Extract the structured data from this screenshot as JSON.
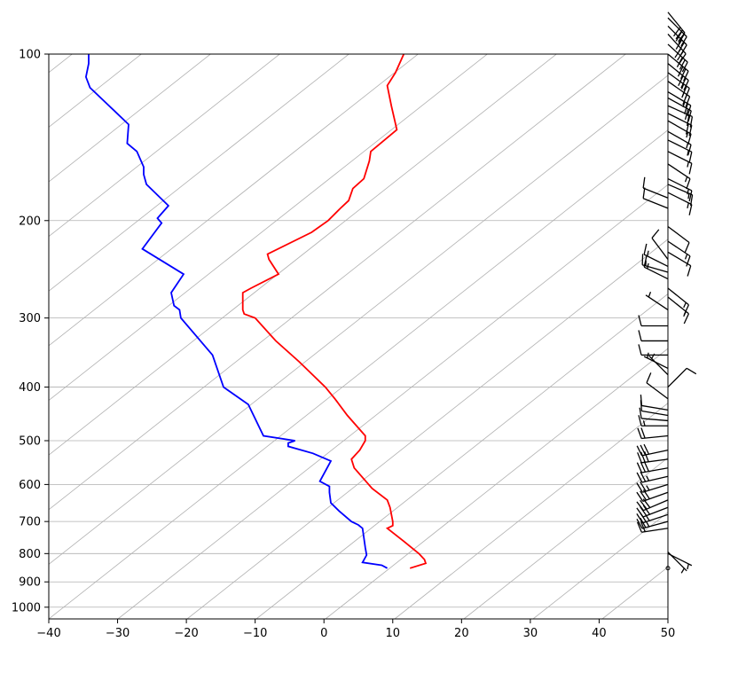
{
  "chart_data": {
    "type": "line",
    "title": "",
    "xlabel": "",
    "ylabel": "",
    "xlim": [
      -40,
      50
    ],
    "ylim_pressure": [
      1050,
      100
    ],
    "y_scale": "log",
    "grid": true,
    "x_ticks": [
      {
        "value": -40,
        "label": "−40"
      },
      {
        "value": -30,
        "label": "−30"
      },
      {
        "value": -20,
        "label": "−20"
      },
      {
        "value": -10,
        "label": "−10"
      },
      {
        "value": 0,
        "label": "0"
      },
      {
        "value": 10,
        "label": "10"
      },
      {
        "value": 20,
        "label": "20"
      },
      {
        "value": 30,
        "label": "30"
      },
      {
        "value": 40,
        "label": "40"
      },
      {
        "value": 50,
        "label": "50"
      }
    ],
    "y_ticks": [
      {
        "value": 100,
        "label": "100"
      },
      {
        "value": 200,
        "label": "200"
      },
      {
        "value": 300,
        "label": "300"
      },
      {
        "value": 400,
        "label": "400"
      },
      {
        "value": 500,
        "label": "500"
      },
      {
        "value": 600,
        "label": "600"
      },
      {
        "value": 700,
        "label": "700"
      },
      {
        "value": 800,
        "label": "800"
      },
      {
        "value": 900,
        "label": "900"
      },
      {
        "value": 1000,
        "label": "1000"
      }
    ],
    "series": [
      {
        "color": "#ff0000",
        "points": [
          {
            "p": 850,
            "x": 12.5
          },
          {
            "p": 833,
            "x": 14.8
          },
          {
            "p": 820,
            "x": 14.6
          },
          {
            "p": 800,
            "x": 13.8
          },
          {
            "p": 760,
            "x": 11.6
          },
          {
            "p": 720,
            "x": 9.2
          },
          {
            "p": 712,
            "x": 10.0
          },
          {
            "p": 700,
            "x": 10.0
          },
          {
            "p": 660,
            "x": 9.6
          },
          {
            "p": 640,
            "x": 9.2
          },
          {
            "p": 610,
            "x": 7.0
          },
          {
            "p": 560,
            "x": 4.4
          },
          {
            "p": 540,
            "x": 4.0
          },
          {
            "p": 520,
            "x": 5.2
          },
          {
            "p": 500,
            "x": 6.0
          },
          {
            "p": 490,
            "x": 6.0
          },
          {
            "p": 450,
            "x": 3.4
          },
          {
            "p": 420,
            "x": 1.6
          },
          {
            "p": 400,
            "x": 0.2
          },
          {
            "p": 360,
            "x": -3.6
          },
          {
            "p": 330,
            "x": -7.0
          },
          {
            "p": 300,
            "x": -10.0
          },
          {
            "p": 295,
            "x": -11.6
          },
          {
            "p": 290,
            "x": -11.8
          },
          {
            "p": 275,
            "x": -11.8
          },
          {
            "p": 270,
            "x": -11.8
          },
          {
            "p": 265,
            "x": -10.6
          },
          {
            "p": 250,
            "x": -6.6
          },
          {
            "p": 235,
            "x": -8.0
          },
          {
            "p": 230,
            "x": -8.2
          },
          {
            "p": 210,
            "x": -1.8
          },
          {
            "p": 200,
            "x": 0.6
          },
          {
            "p": 190,
            "x": 2.4
          },
          {
            "p": 184,
            "x": 3.6
          },
          {
            "p": 175,
            "x": 4.2
          },
          {
            "p": 168,
            "x": 5.8
          },
          {
            "p": 156,
            "x": 6.6
          },
          {
            "p": 150,
            "x": 6.8
          },
          {
            "p": 137,
            "x": 10.6
          },
          {
            "p": 124,
            "x": 9.8
          },
          {
            "p": 114,
            "x": 9.2
          },
          {
            "p": 108,
            "x": 10.4
          },
          {
            "p": 100,
            "x": 11.6
          }
        ]
      },
      {
        "color": "#0000ff",
        "points": [
          {
            "p": 850,
            "x": 9.2
          },
          {
            "p": 840,
            "x": 8.4
          },
          {
            "p": 830,
            "x": 5.6
          },
          {
            "p": 805,
            "x": 6.2
          },
          {
            "p": 780,
            "x": 6.0
          },
          {
            "p": 720,
            "x": 5.6
          },
          {
            "p": 710,
            "x": 5.0
          },
          {
            "p": 700,
            "x": 4.0
          },
          {
            "p": 670,
            "x": 2.2
          },
          {
            "p": 648,
            "x": 1.0
          },
          {
            "p": 620,
            "x": 0.8
          },
          {
            "p": 605,
            "x": 0.8
          },
          {
            "p": 592,
            "x": -0.6
          },
          {
            "p": 544,
            "x": 1.0
          },
          {
            "p": 527,
            "x": -1.6
          },
          {
            "p": 512,
            "x": -5.2
          },
          {
            "p": 505,
            "x": -5.2
          },
          {
            "p": 500,
            "x": -4.2
          },
          {
            "p": 490,
            "x": -8.8
          },
          {
            "p": 430,
            "x": -11.0
          },
          {
            "p": 400,
            "x": -14.6
          },
          {
            "p": 350,
            "x": -16.2
          },
          {
            "p": 300,
            "x": -20.8
          },
          {
            "p": 290,
            "x": -21.0
          },
          {
            "p": 285,
            "x": -21.8
          },
          {
            "p": 270,
            "x": -22.2
          },
          {
            "p": 250,
            "x": -20.4
          },
          {
            "p": 225,
            "x": -26.4
          },
          {
            "p": 202,
            "x": -23.6
          },
          {
            "p": 198,
            "x": -24.2
          },
          {
            "p": 188,
            "x": -22.6
          },
          {
            "p": 172,
            "x": -25.8
          },
          {
            "p": 165,
            "x": -26.2
          },
          {
            "p": 160,
            "x": -26.2
          },
          {
            "p": 150,
            "x": -27.2
          },
          {
            "p": 145,
            "x": -28.6
          },
          {
            "p": 134,
            "x": -28.4
          },
          {
            "p": 115,
            "x": -34.0
          },
          {
            "p": 110,
            "x": -34.6
          },
          {
            "p": 104,
            "x": -34.2
          },
          {
            "p": 100,
            "x": -34.2
          }
        ]
      }
    ],
    "wind_barbs": [
      {
        "p": 850,
        "u": 0,
        "v": 0
      },
      {
        "p": 800,
        "u": -6,
        "v": 3
      },
      {
        "p": 795,
        "u": -5,
        "v": 5
      },
      {
        "p": 720,
        "u": 20,
        "v": 3
      },
      {
        "p": 700,
        "u": 22,
        "v": 6
      },
      {
        "p": 680,
        "u": 24,
        "v": 8
      },
      {
        "p": 660,
        "u": 26,
        "v": 10
      },
      {
        "p": 640,
        "u": 28,
        "v": 12
      },
      {
        "p": 620,
        "u": 28,
        "v": 10
      },
      {
        "p": 600,
        "u": 26,
        "v": 8
      },
      {
        "p": 580,
        "u": 26,
        "v": 6
      },
      {
        "p": 560,
        "u": 28,
        "v": 5
      },
      {
        "p": 540,
        "u": 30,
        "v": 4
      },
      {
        "p": 520,
        "u": 28,
        "v": 6
      },
      {
        "p": 490,
        "u": 20,
        "v": 2
      },
      {
        "p": 470,
        "u": 14,
        "v": 0
      },
      {
        "p": 460,
        "u": 12,
        "v": -1
      },
      {
        "p": 450,
        "u": 12,
        "v": -2
      },
      {
        "p": 440,
        "u": 12,
        "v": -2
      },
      {
        "p": 420,
        "u": 8,
        "v": -6
      },
      {
        "p": 400,
        "u": -8,
        "v": -8
      },
      {
        "p": 380,
        "u": 4,
        "v": -4
      },
      {
        "p": 370,
        "u": 6,
        "v": -3
      },
      {
        "p": 350,
        "u": 10,
        "v": 0
      },
      {
        "p": 330,
        "u": 10,
        "v": 0
      },
      {
        "p": 310,
        "u": 10,
        "v": 0
      },
      {
        "p": 290,
        "u": 6,
        "v": -4
      },
      {
        "p": 275,
        "u": -10,
        "v": 8
      },
      {
        "p": 265,
        "u": -10,
        "v": 8
      },
      {
        "p": 255,
        "u": 12,
        "v": -6
      },
      {
        "p": 248,
        "u": 14,
        "v": -4
      },
      {
        "p": 242,
        "u": 12,
        "v": -6
      },
      {
        "p": 235,
        "u": 6,
        "v": -8
      },
      {
        "p": 228,
        "u": -10,
        "v": 6
      },
      {
        "p": 218,
        "u": -12,
        "v": 8
      },
      {
        "p": 205,
        "u": -8,
        "v": 6
      },
      {
        "p": 190,
        "u": 10,
        "v": -4
      },
      {
        "p": 182,
        "u": 10,
        "v": -4
      },
      {
        "p": 178,
        "u": -12,
        "v": 6
      },
      {
        "p": 172,
        "u": -14,
        "v": 6
      },
      {
        "p": 168,
        "u": -12,
        "v": 6
      },
      {
        "p": 158,
        "u": -12,
        "v": 8
      },
      {
        "p": 150,
        "u": -12,
        "v": 6
      },
      {
        "p": 143,
        "u": -12,
        "v": 6
      },
      {
        "p": 138,
        "u": -14,
        "v": 8
      },
      {
        "p": 132,
        "u": -14,
        "v": 8
      },
      {
        "p": 128,
        "u": -16,
        "v": 8
      },
      {
        "p": 124,
        "u": -18,
        "v": 8
      },
      {
        "p": 120,
        "u": -18,
        "v": 10
      },
      {
        "p": 117,
        "u": -20,
        "v": 12
      },
      {
        "p": 112,
        "u": -20,
        "v": 14
      },
      {
        "p": 108,
        "u": -22,
        "v": 16
      },
      {
        "p": 104,
        "u": -22,
        "v": 18
      },
      {
        "p": 100,
        "u": -24,
        "v": 20
      },
      {
        "p": 96,
        "u": -22,
        "v": 20
      },
      {
        "p": 92,
        "u": -20,
        "v": 22
      },
      {
        "p": 89,
        "u": -22,
        "v": 22
      },
      {
        "p": 86,
        "u": -20,
        "v": 20
      },
      {
        "p": 84,
        "u": -18,
        "v": 22
      }
    ]
  }
}
